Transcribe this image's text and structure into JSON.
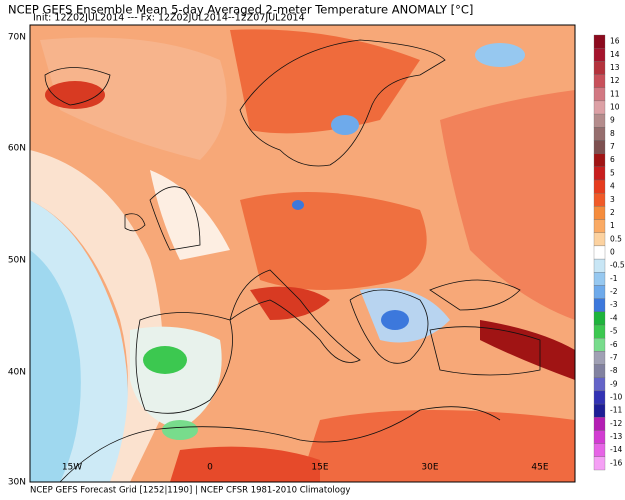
{
  "header": {
    "title": "NCEP GEFS Ensemble Mean 5-day Averaged 2-meter Temperature ANOMALY [°C]",
    "subtitle": "Init: 12Z02JUL2014 --- Fx: 12Z02JUL2014--12Z07JUL2014"
  },
  "footer": {
    "text": "NCEP GEFS Forecast Grid [1252|1190] | NCEP CFSR 1981-2010 Climatology"
  },
  "map": {
    "latitude_labels": [
      "70N",
      "60N",
      "50N",
      "40N",
      "30N"
    ],
    "longitude_labels": [
      "15W",
      "0",
      "15E",
      "30E",
      "45E"
    ]
  },
  "colorbar": {
    "levels": [
      16,
      14,
      13,
      12,
      11,
      10,
      9,
      8,
      7,
      6,
      5,
      4,
      3,
      2,
      1,
      0.5,
      0,
      -0.5,
      -1,
      -2,
      -3,
      -4,
      -5,
      -6,
      -7,
      -8,
      -9,
      -10,
      -11,
      -12,
      -13,
      -14,
      -16
    ],
    "colors": [
      "#8c0a1e",
      "#a5142d",
      "#b4323c",
      "#c8505a",
      "#d27882",
      "#dca0a5",
      "#b48c8c",
      "#966e6e",
      "#7d5050",
      "#a01414",
      "#c81e1e",
      "#e63c1e",
      "#f05a28",
      "#f58c3c",
      "#faaa64",
      "#fcd2a0",
      "#ffffff",
      "#c8e6f5",
      "#96c8f0",
      "#6eaaeb",
      "#3c78dc",
      "#1eb43c",
      "#3cc850",
      "#78dc8c",
      "#a0a0b4",
      "#8282a0",
      "#6464c8",
      "#3232b4",
      "#1e1e96",
      "#b41eb4",
      "#d23cd2",
      "#e664e6",
      "#f5a0f5"
    ]
  }
}
